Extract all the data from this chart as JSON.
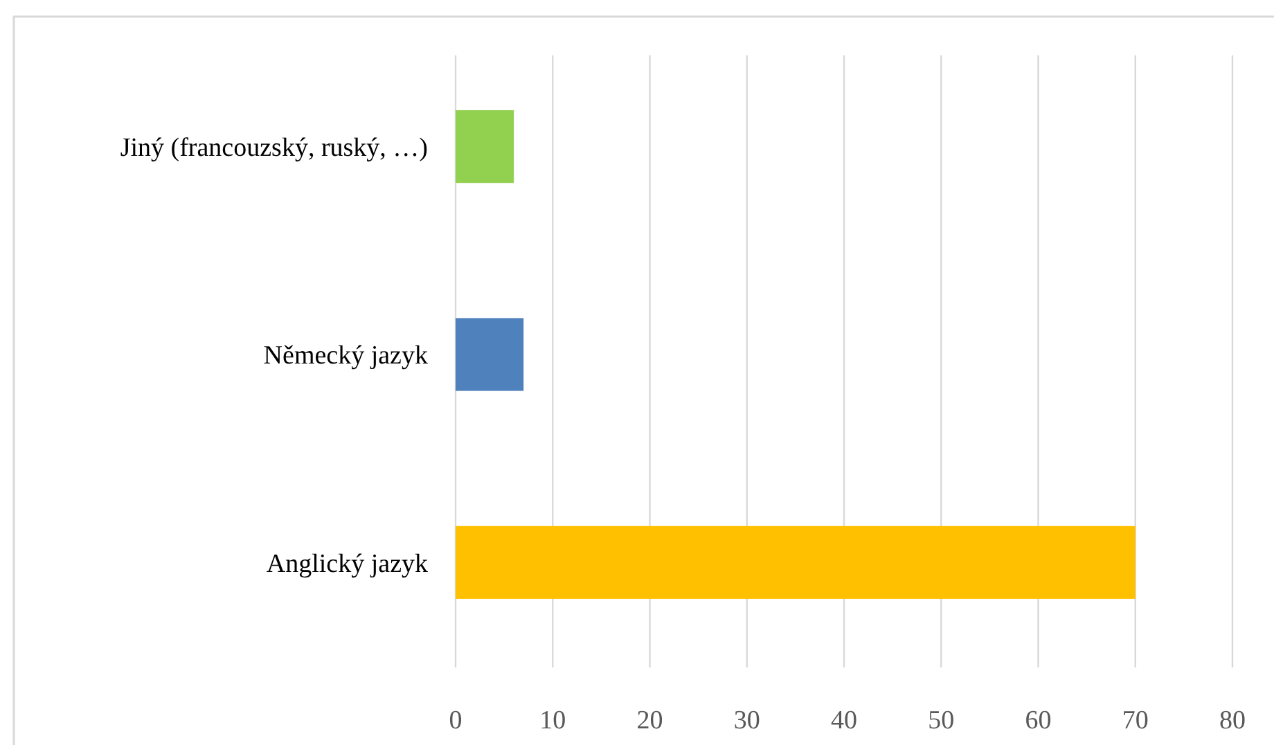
{
  "chart_data": {
    "type": "bar",
    "orientation": "horizontal",
    "categories": [
      "Jiný (francouzský, ruský, …)",
      "Německý jazyk",
      "Anglický jazyk"
    ],
    "values": [
      6,
      7,
      70
    ],
    "colors": [
      "#92d050",
      "#4f81bd",
      "#ffc000"
    ],
    "xlim": [
      0,
      80
    ],
    "xticks": [
      0,
      10,
      20,
      30,
      40,
      50,
      60,
      70,
      80
    ],
    "grid": "x"
  }
}
